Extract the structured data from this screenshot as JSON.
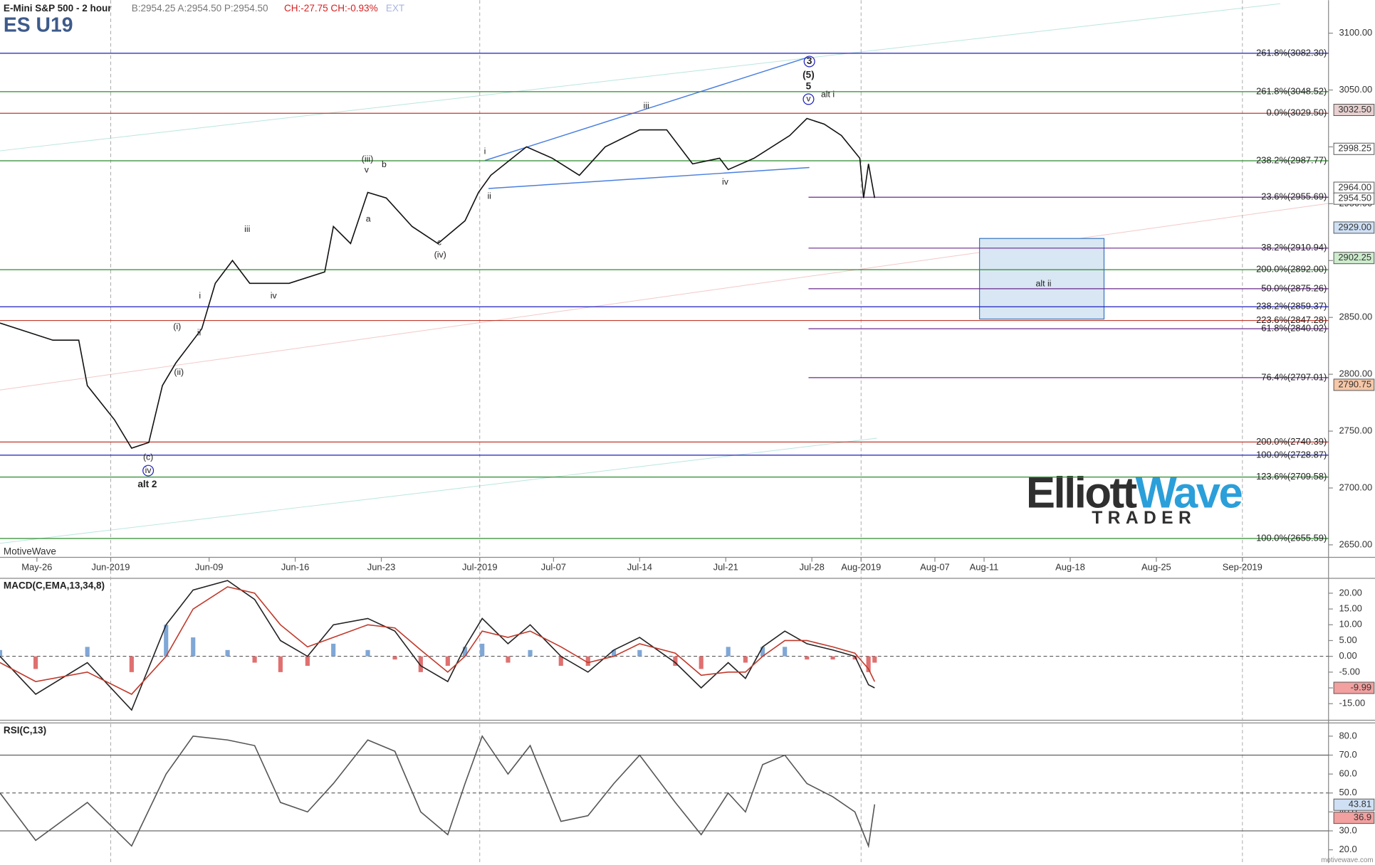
{
  "chart_data": [
    {
      "type": "line",
      "title": "E-Mini S&P 500 - 2 hour",
      "subtitle": "ES U19",
      "quote": "B:2954.25 A:2954.50 P:2954.50",
      "change": "CH:-27.75 CH:-0.93%",
      "ext": "EXT",
      "watermark": "MotiveWave",
      "xlim": [
        -3,
        105
      ],
      "ylim": [
        2639,
        3129
      ],
      "xticks": [
        {
          "value": 0,
          "label": "May-26",
          "grid": false
        },
        {
          "value": 6,
          "label": "Jun-2019",
          "grid": true
        },
        {
          "value": 14,
          "label": "Jun-09",
          "grid": false
        },
        {
          "value": 21,
          "label": "Jun-16",
          "grid": false
        },
        {
          "value": 28,
          "label": "Jun-23",
          "grid": false
        },
        {
          "value": 36,
          "label": "Jul-2019",
          "grid": true
        },
        {
          "value": 42,
          "label": "Jul-07",
          "grid": false
        },
        {
          "value": 49,
          "label": "Jul-14",
          "grid": false
        },
        {
          "value": 56,
          "label": "Jul-21",
          "grid": false
        },
        {
          "value": 63,
          "label": "Jul-28",
          "grid": false
        },
        {
          "value": 67,
          "label": "Aug-2019",
          "grid": true
        },
        {
          "value": 73,
          "label": "Aug-07",
          "grid": false
        },
        {
          "value": 77,
          "label": "Aug-11",
          "grid": false
        },
        {
          "value": 84,
          "label": "Aug-18",
          "grid": false
        },
        {
          "value": 91,
          "label": "Aug-25",
          "grid": false
        },
        {
          "value": 98,
          "label": "Sep-2019",
          "grid": true
        }
      ],
      "yticks": [
        {
          "value": 3100,
          "label": "3100.00"
        },
        {
          "value": 3050,
          "label": "3050.00"
        },
        {
          "value": 3000,
          "label": "3000.00"
        },
        {
          "value": 2950,
          "label": "2950.00"
        },
        {
          "value": 2900,
          "label": "2900.00"
        },
        {
          "value": 2850,
          "label": "2850.00"
        },
        {
          "value": 2800,
          "label": "2800.00"
        },
        {
          "value": 2750,
          "label": "2750.00"
        },
        {
          "value": 2700,
          "label": "2700.00"
        },
        {
          "value": 2650,
          "label": "2650.00"
        }
      ],
      "x": [
        -3,
        1.3,
        3.4,
        4.1,
        6.3,
        7.7,
        9.1,
        10.2,
        11.3,
        13.4,
        14.5,
        15.9,
        17.3,
        19.1,
        20.5,
        23.4,
        24.1,
        25.5,
        26.9,
        28.4,
        30.5,
        32.6,
        34.8,
        35.9,
        36.9,
        39.8,
        41.9,
        44.1,
        46.2,
        49,
        51.2,
        53.3,
        55.5,
        56.2,
        58.3,
        61.2,
        62.6,
        64,
        65.4,
        66.9,
        67.2,
        67.6,
        68.1
      ],
      "series": [
        {
          "color": "#111111",
          "values": [
            2845,
            2830,
            2830,
            2790,
            2760,
            2735,
            2740,
            2790,
            2810,
            2840,
            2880,
            2900,
            2880,
            2880,
            2880,
            2890,
            2930,
            2915,
            2960,
            2955,
            2930,
            2915,
            2935,
            2960,
            2975,
            3000,
            2990,
            2975,
            3000,
            3015,
            3015,
            2985,
            2990,
            2980,
            2990,
            3010,
            3025,
            3020,
            3010,
            2990,
            2955,
            2985,
            2955
          ]
        }
      ],
      "levels": [
        {
          "value": 3082.3,
          "label": "261.8%(3082.30)",
          "color": "#1f1fbf",
          "partial": false
        },
        {
          "value": 3048.52,
          "label": "261.8%(3048.52)",
          "color": "#2e8b2e",
          "partial": false
        },
        {
          "value": 3029.5,
          "label": "0.0%(3029.50)",
          "color": "#c0392b",
          "partial": false
        },
        {
          "value": 2987.77,
          "label": "238.2%(2987.77)",
          "color": "#2e8b2e",
          "partial": false
        },
        {
          "value": 2955.69,
          "label": "23.6%(2955.69)",
          "color": "#6a2a8c",
          "partial": true
        },
        {
          "value": 2910.94,
          "label": "38.2%(2910.94)",
          "color": "#6a2a8c",
          "partial": true
        },
        {
          "value": 2892.0,
          "label": "200.0%(2892.00)",
          "color": "#2e8b2e",
          "partial": false
        },
        {
          "value": 2875.26,
          "label": "50.0%(2875.26)",
          "color": "#6a2a8c",
          "partial": true
        },
        {
          "value": 2859.37,
          "label": "238.2%(2859.37)",
          "color": "#1f1fbf",
          "partial": false
        },
        {
          "value": 2847.28,
          "label": "223.6%(2847.28)",
          "color": "#c0392b",
          "partial": false
        },
        {
          "value": 2840.02,
          "label": "61.8%(2840.02)",
          "color": "#6a2a8c",
          "partial": true
        },
        {
          "value": 2797.01,
          "label": "76.4%(2797.01)",
          "color": "#6a2a8c",
          "partial": true
        },
        {
          "value": 2740.39,
          "label": "200.0%(2740.39)",
          "color": "#c0392b",
          "partial": false
        },
        {
          "value": 2728.87,
          "label": "100.0%(2728.87)",
          "color": "#1f1fbf",
          "partial": false
        },
        {
          "value": 2709.58,
          "label": "123.6%(2709.58)",
          "color": "#2e8b2e",
          "partial": false
        },
        {
          "value": 2655.59,
          "label": "100.0%(2655.59)",
          "color": "#2e8b2e",
          "partial": false
        }
      ],
      "tags": [
        {
          "value": 3032.5,
          "label": "3032.50",
          "color": "#e8d0d0"
        },
        {
          "value": 2998.25,
          "label": "2998.25",
          "color": "#ffffff"
        },
        {
          "value": 2964.0,
          "label": "2964.00",
          "color": "#ffffff"
        },
        {
          "value": 2954.5,
          "label": "2954.50",
          "color": "#ffffff"
        },
        {
          "value": 2929.0,
          "label": "2929.00",
          "color": "#cfe0f5"
        },
        {
          "value": 2902.25,
          "label": "2902.25",
          "color": "#cdeccd"
        },
        {
          "value": 2790.75,
          "label": "2790.75",
          "color": "#f6c7a8"
        }
      ],
      "annotations": [
        {
          "text": "3",
          "color": "#1f1fbf"
        },
        {
          "text": "(5)",
          "color": "#1f1fbf"
        },
        {
          "text": "5",
          "color": "#1f1fbf"
        },
        {
          "text": "v",
          "color": "#1f1fbf"
        },
        {
          "text": "alt i",
          "color": "#d62020"
        },
        {
          "text": "iii",
          "color": "#1f1fbf"
        },
        {
          "text": "i",
          "color": "#1f1fbf"
        },
        {
          "text": "ii",
          "color": "#1f1fbf"
        },
        {
          "text": "iv",
          "color": "#1f1fbf"
        },
        {
          "text": "(iii)",
          "color": "#1f1fbf"
        },
        {
          "text": "v",
          "color": "#1f1fbf"
        },
        {
          "text": "b",
          "color": "#1f1fbf"
        },
        {
          "text": "a",
          "color": "#1f1fbf"
        },
        {
          "text": "c",
          "color": "#1f1fbf"
        },
        {
          "text": "(iv)",
          "color": "#1f1fbf"
        },
        {
          "text": "iii",
          "color": "#1f1fbf"
        },
        {
          "text": "iv",
          "color": "#1f1fbf"
        },
        {
          "text": "i",
          "color": "#1f1fbf"
        },
        {
          "text": "(i)",
          "color": "#1f1fbf"
        },
        {
          "text": "ii",
          "color": "#1f1fbf"
        },
        {
          "text": "(ii)",
          "color": "#1f1fbf"
        },
        {
          "text": "(c)",
          "color": "#1f1fbf"
        },
        {
          "text": "iv",
          "color": "#1f1fbf"
        },
        {
          "text": "alt 2",
          "color": "#d62020"
        },
        {
          "text": "alt ii",
          "color": "#d62020"
        }
      ]
    },
    {
      "type": "line",
      "title": "MACD(C,EMA,13,34,8)",
      "xlim": [
        -3,
        105
      ],
      "ylim": [
        -19.7,
        24.7
      ],
      "yticks": [
        {
          "value": 20,
          "label": "20.00"
        },
        {
          "value": 15,
          "label": "15.00"
        },
        {
          "value": 10,
          "label": "10.00"
        },
        {
          "value": 5,
          "label": "5.00"
        },
        {
          "value": 0,
          "label": "0.00"
        },
        {
          "value": -5,
          "label": "-5.00"
        },
        {
          "value": -10,
          "label": "-10.00"
        },
        {
          "value": -15,
          "label": "-15.00"
        }
      ],
      "reference_lines": [
        {
          "value": 0,
          "dashed": true
        }
      ],
      "x": [
        -3,
        -0.1,
        4.1,
        7.7,
        10.5,
        12.7,
        15.5,
        17.7,
        19.8,
        22,
        24.1,
        26.9,
        29.1,
        31.2,
        33.4,
        34.8,
        36.2,
        38.3,
        40.1,
        42.6,
        44.8,
        46.9,
        49,
        51.9,
        54,
        56.2,
        57.6,
        59,
        60.8,
        62.6,
        64.7,
        66.5,
        67.6,
        68.1
      ],
      "series": [
        {
          "color": "#222222",
          "values": [
            0,
            -12,
            -2,
            -17,
            10,
            21,
            24,
            18,
            5,
            0,
            10,
            12,
            8,
            -3,
            -8,
            3,
            12,
            4,
            10,
            0,
            -5,
            2,
            6,
            -2,
            -10,
            -2,
            -7,
            3,
            8,
            4,
            2,
            0,
            -9,
            -10
          ]
        },
        {
          "color": "#c0392b",
          "values": [
            -2,
            -8,
            -5,
            -12,
            0,
            15,
            22,
            20,
            10,
            3,
            6,
            10,
            9,
            2,
            -5,
            0,
            8,
            6,
            8,
            3,
            -2,
            0,
            4,
            1,
            -6,
            -5,
            -5,
            0,
            5,
            5,
            3,
            1,
            -4,
            -8
          ]
        }
      ],
      "histogram": {
        "up_color": "#7fa7d6",
        "down_color": "#e07070",
        "values": [
          2,
          -4,
          3,
          -5,
          10,
          6,
          2,
          -2,
          -5,
          -3,
          4,
          2,
          -1,
          -5,
          -3,
          3,
          4,
          -2,
          2,
          -3,
          -3,
          2,
          2,
          -3,
          -4,
          3,
          -2,
          3,
          3,
          -1,
          -1,
          -1,
          -5,
          -2
        ]
      },
      "tags": [
        {
          "value": -9.99,
          "label": "-9.99",
          "color": "#f2a0a0"
        }
      ]
    },
    {
      "type": "line",
      "title": "RSI(C,13)",
      "xlim": [
        -3,
        105
      ],
      "ylim": [
        13,
        87
      ],
      "yticks": [
        {
          "value": 80,
          "label": "80.0"
        },
        {
          "value": 70,
          "label": "70.0"
        },
        {
          "value": 60,
          "label": "60.0"
        },
        {
          "value": 50,
          "label": "50.0"
        },
        {
          "value": 40,
          "label": "40.0"
        },
        {
          "value": 30,
          "label": "30.0"
        },
        {
          "value": 20,
          "label": "20.0"
        }
      ],
      "reference_lines": [
        {
          "value": 70,
          "dashed": false
        },
        {
          "value": 50,
          "dashed": true
        },
        {
          "value": 30,
          "dashed": false
        }
      ],
      "x": [
        -3,
        -0.1,
        4.1,
        7.7,
        10.5,
        12.7,
        15.5,
        17.7,
        19.8,
        22,
        24.1,
        26.9,
        29.1,
        31.2,
        33.4,
        34.8,
        36.2,
        38.3,
        40.1,
        42.6,
        44.8,
        46.9,
        49,
        51.9,
        54,
        56.2,
        57.6,
        59,
        60.8,
        62.6,
        64.7,
        66.5,
        67.6,
        68.1
      ],
      "series": [
        {
          "color": "#555555",
          "values": [
            50,
            25,
            45,
            22,
            60,
            80,
            78,
            75,
            45,
            40,
            55,
            78,
            72,
            40,
            28,
            55,
            80,
            60,
            75,
            35,
            38,
            55,
            70,
            45,
            28,
            50,
            40,
            65,
            70,
            55,
            48,
            40,
            22,
            44
          ]
        }
      ],
      "tags": [
        {
          "value": 43.81,
          "label": "43.81",
          "color": "#cfe0f5"
        },
        {
          "value": 36.9,
          "label": "36.9",
          "color": "#f2a0a0"
        }
      ]
    }
  ],
  "brand": {
    "part1": "Elliott",
    "part2": "Wave",
    "sub": "TRADER"
  },
  "footer": "motivewave.com"
}
